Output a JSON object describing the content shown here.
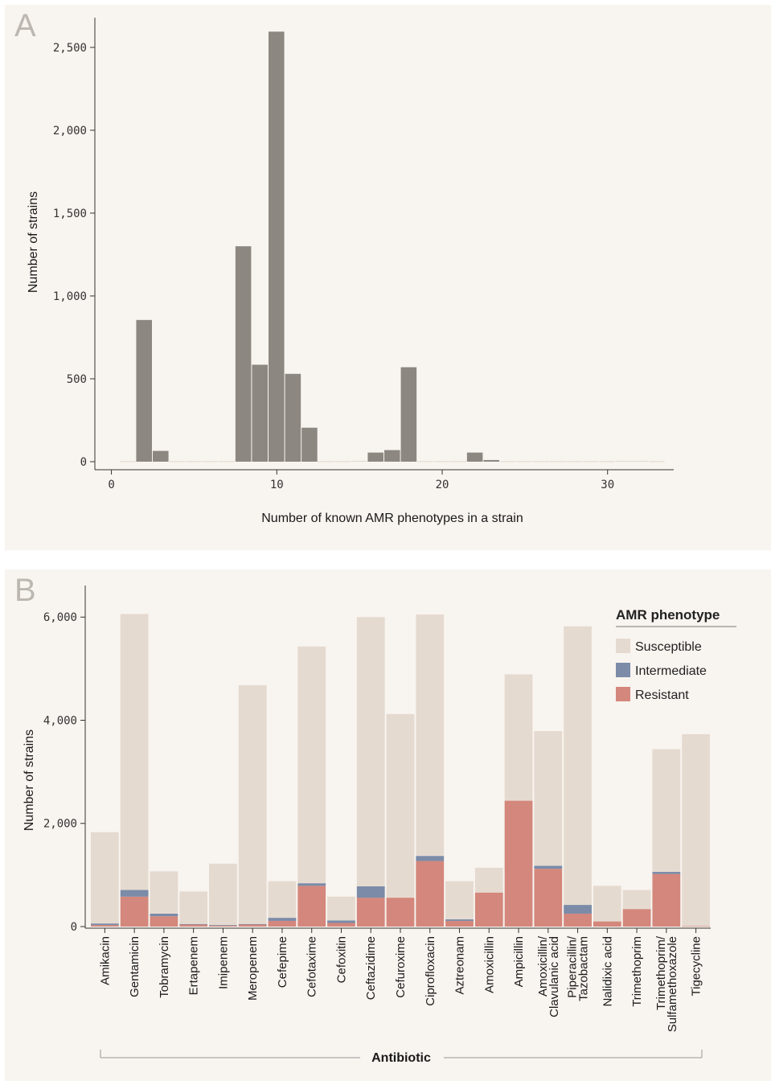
{
  "colors": {
    "histogram_bar": "#8d8782",
    "susceptible": "#e5dad0",
    "intermediate": "#7b8ba8",
    "resistant": "#d4877c",
    "background": "#f8f4ef",
    "axis": "#333333"
  },
  "chart_data": [
    {
      "panel_label": "A",
      "type": "bar",
      "xlabel": "Number of known AMR phenotypes in a strain",
      "ylabel": "Number of strains",
      "xlim": [
        -1,
        34
      ],
      "ylim": [
        0,
        2650
      ],
      "x_ticks": [
        0,
        10,
        20,
        30
      ],
      "x_tick_labels": [
        "0",
        "10",
        "20",
        "30"
      ],
      "y_ticks": [
        0,
        500,
        1000,
        1500,
        2000,
        2500
      ],
      "y_tick_labels": [
        "0",
        "500",
        "1,000",
        "1,500",
        "2,000",
        "2,500"
      ],
      "x": [
        1,
        2,
        3,
        4,
        5,
        6,
        7,
        8,
        9,
        10,
        11,
        12,
        13,
        14,
        15,
        16,
        17,
        18,
        19,
        20,
        21,
        22,
        23,
        24,
        25,
        26,
        27,
        28,
        29,
        30,
        31,
        32,
        33
      ],
      "values": [
        3,
        855,
        65,
        3,
        3,
        3,
        3,
        1300,
        585,
        2595,
        530,
        205,
        3,
        3,
        5,
        55,
        70,
        570,
        3,
        3,
        3,
        55,
        10,
        3,
        3,
        3,
        3,
        3,
        3,
        3,
        5,
        5,
        3
      ],
      "grid": false
    },
    {
      "panel_label": "B",
      "type": "bar",
      "stacked": true,
      "xlabel": "Antibiotic",
      "ylabel": "Number of strains",
      "ylim": [
        0,
        6300
      ],
      "y_ticks": [
        0,
        2000,
        4000,
        6000
      ],
      "y_tick_labels": [
        "0",
        "2,000",
        "4,000",
        "6,000"
      ],
      "legend_title": "AMR phenotype",
      "legend_position": "top-right",
      "categories": [
        "Amikacin",
        "Gentamicin",
        "Tobramycin",
        "Ertapenem",
        "Imipenem",
        "Meropenem",
        "Cefepime",
        "Cefotaxime",
        "Cefoxitin",
        "Ceftazidime",
        "Cefuroxime",
        "Ciprofloxacin",
        "Aztreonam",
        "Amoxicillin",
        "Ampicillin",
        "Amoxicillin/ Clavulanic acid",
        "Piperacillin/ Tazobactam",
        "Nalidixic acid",
        "Trimethoprim",
        "Trimethoprim/ Sulfamethoxazole",
        "Tigecycline"
      ],
      "category_lines": [
        [
          "Amikacin"
        ],
        [
          "Gentamicin"
        ],
        [
          "Tobramycin"
        ],
        [
          "Ertapenem"
        ],
        [
          "Imipenem"
        ],
        [
          "Meropenem"
        ],
        [
          "Cefepime"
        ],
        [
          "Cefotaxime"
        ],
        [
          "Cefoxitin"
        ],
        [
          "Ceftazidime"
        ],
        [
          "Cefuroxime"
        ],
        [
          "Ciprofloxacin"
        ],
        [
          "Aztreonam"
        ],
        [
          "Amoxicillin"
        ],
        [
          "Ampicillin"
        ],
        [
          "Amoxicillin/",
          "Clavulanic acid"
        ],
        [
          "Piperacillin/",
          "Tazobactam"
        ],
        [
          "Nalidixic acid"
        ],
        [
          "Trimethoprim"
        ],
        [
          "Trimethoprim/",
          "Sulfamethoxazole"
        ],
        [
          "Tigecycline"
        ]
      ],
      "series": [
        {
          "name": "Resistant",
          "color": "#d4877c",
          "values": [
            30,
            580,
            200,
            40,
            20,
            40,
            110,
            790,
            70,
            560,
            560,
            1270,
            110,
            660,
            2440,
            1120,
            250,
            100,
            340,
            1020,
            10
          ]
        },
        {
          "name": "Intermediate",
          "color": "#7b8ba8",
          "values": [
            30,
            130,
            50,
            10,
            10,
            10,
            60,
            50,
            50,
            220,
            0,
            100,
            30,
            0,
            0,
            60,
            170,
            0,
            0,
            40,
            0
          ]
        },
        {
          "name": "Susceptible",
          "color": "#e5dad0",
          "values": [
            1770,
            5350,
            820,
            630,
            1190,
            4630,
            710,
            4590,
            460,
            5220,
            3560,
            4680,
            740,
            480,
            2450,
            2610,
            5400,
            690,
            370,
            2380,
            3720
          ]
        }
      ],
      "legend_items": [
        "Susceptible",
        "Intermediate",
        "Resistant"
      ],
      "grid": false
    }
  ]
}
